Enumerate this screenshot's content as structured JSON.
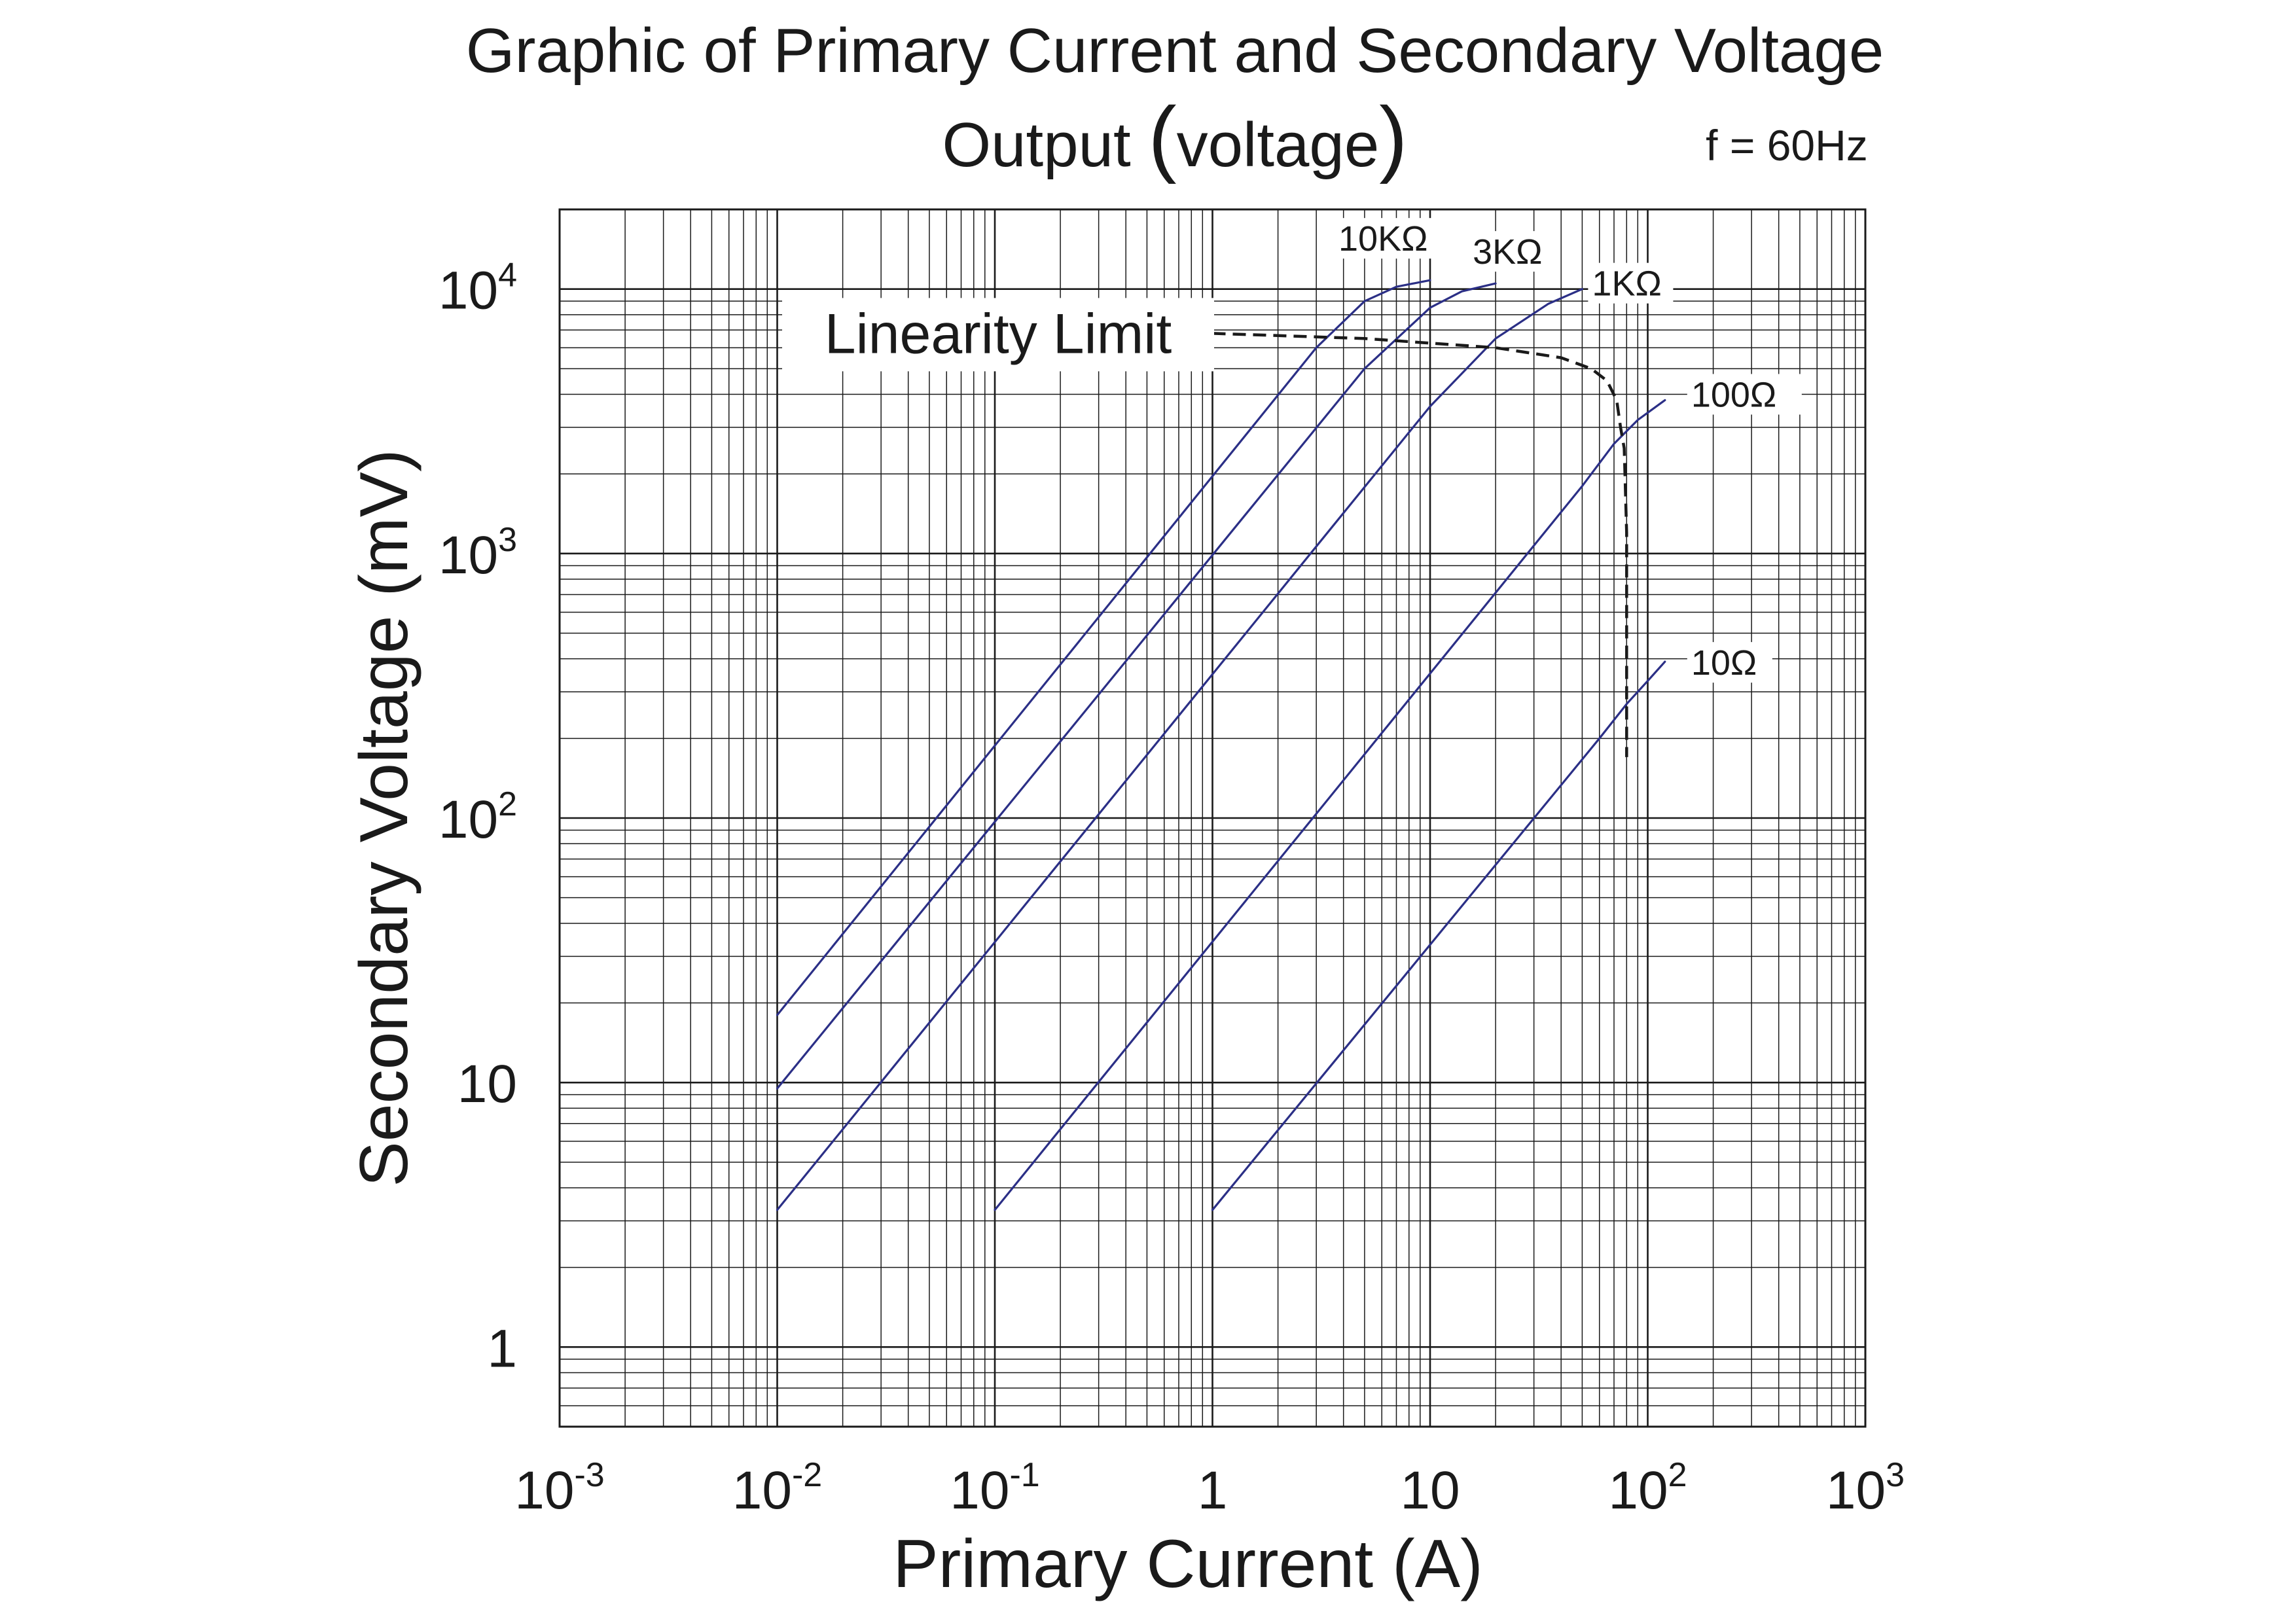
{
  "chart_data": {
    "type": "line",
    "title_line1": "Graphic of Primary Current and Secondary Voltage",
    "title_line2_main": "Output ",
    "title_line2_paren_open": "(",
    "title_line2_inner": "voltage",
    "title_line2_paren_close": ")",
    "annotation_frequency": "f = 60Hz",
    "xlabel": "Primary Current (A)",
    "ylabel": "Secondary Voltage (mV)",
    "x_scale": "log",
    "y_scale": "log",
    "xlim": [
      0.001,
      1000
    ],
    "ylim": [
      0.5,
      20000
    ],
    "grid": true,
    "x_ticks": [
      {
        "value": 0.001,
        "base": "10",
        "exp": "-3"
      },
      {
        "value": 0.01,
        "base": "10",
        "exp": "-2"
      },
      {
        "value": 0.1,
        "base": "10",
        "exp": "-1"
      },
      {
        "value": 1,
        "base": "1",
        "exp": ""
      },
      {
        "value": 10,
        "base": "10",
        "exp": ""
      },
      {
        "value": 100,
        "base": "10",
        "exp": "2"
      },
      {
        "value": 1000,
        "base": "10",
        "exp": "3"
      }
    ],
    "y_ticks": [
      {
        "value": 1,
        "base": "1",
        "exp": ""
      },
      {
        "value": 10,
        "base": "10",
        "exp": ""
      },
      {
        "value": 100,
        "base": "10",
        "exp": "2"
      },
      {
        "value": 1000,
        "base": "10",
        "exp": "3"
      },
      {
        "value": 10000,
        "base": "10",
        "exp": "4"
      }
    ],
    "series_color": "#2b2f86",
    "limit_color": "#1a1a1a",
    "series": [
      {
        "name": "10KΩ",
        "x": [
          0.01,
          3,
          5,
          7,
          10
        ],
        "y": [
          18,
          6000,
          9000,
          10200,
          10800
        ]
      },
      {
        "name": "3KΩ",
        "x": [
          0.01,
          5,
          10,
          14,
          20
        ],
        "y": [
          9.5,
          5000,
          8500,
          9800,
          10500
        ]
      },
      {
        "name": "1KΩ",
        "x": [
          0.01,
          10,
          20,
          35,
          50
        ],
        "y": [
          3.3,
          3600,
          6500,
          8800,
          10000
        ]
      },
      {
        "name": "100Ω",
        "x": [
          0.1,
          50,
          70,
          90,
          120
        ],
        "y": [
          3.3,
          1800,
          2600,
          3200,
          3800
        ]
      },
      {
        "name": "10Ω",
        "x": [
          1,
          60,
          80,
          100,
          120
        ],
        "y": [
          3.3,
          200,
          270,
          330,
          390
        ]
      }
    ],
    "linearity_limit": {
      "label": "Linearity Limit",
      "x": [
        1,
        5,
        20,
        40,
        55,
        65,
        72,
        75,
        78,
        80,
        80
      ],
      "y": [
        6800,
        6500,
        6000,
        5500,
        5000,
        4500,
        3800,
        3000,
        2500,
        1200,
        170
      ]
    }
  }
}
